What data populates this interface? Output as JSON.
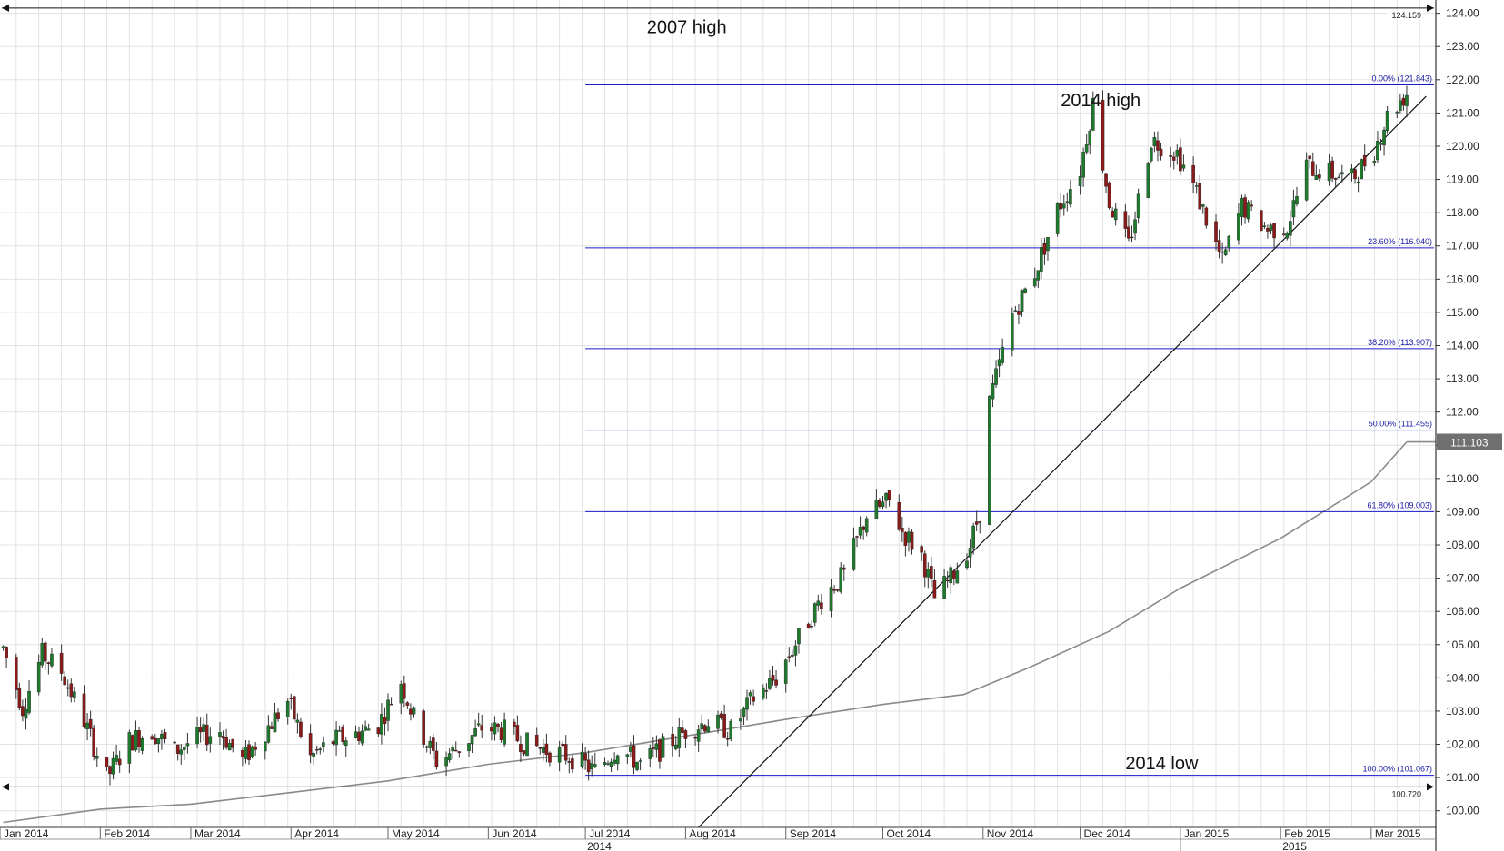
{
  "chart_data": {
    "type": "candlestick",
    "title": "",
    "xlabel": "",
    "ylabel": "",
    "ylim": [
      99.5,
      124.4
    ],
    "y_ticks": [
      "100.00",
      "101.00",
      "102.00",
      "103.00",
      "104.00",
      "105.00",
      "106.00",
      "107.00",
      "108.00",
      "109.00",
      "110.00",
      "111.00",
      "112.00",
      "113.00",
      "114.00",
      "115.00",
      "116.00",
      "117.00",
      "118.00",
      "119.00",
      "120.00",
      "121.00",
      "122.00",
      "123.00",
      "124.00"
    ],
    "x_month_labels": [
      "Jan 2014",
      "Feb 2014",
      "Mar 2014",
      "Apr 2014",
      "May 2014",
      "Jun 2014",
      "Jul 2014",
      "Aug 2014",
      "Sep 2014",
      "Oct 2014",
      "Nov 2014",
      "Dec 2014",
      "Jan 2015",
      "Feb 2015",
      "Mar 2015"
    ],
    "x_year_labels": [
      "2014",
      "2015"
    ],
    "grid": true,
    "colors": {
      "up": "#1f7a2e",
      "down": "#8b1a1a",
      "fib": "#1a1acd",
      "ma": "#8a8a8a",
      "trend": "#111111",
      "ref": "#111111"
    },
    "fib_levels": [
      {
        "label": "0.00% (121.843)",
        "value": 121.843
      },
      {
        "label": "23.60% (116.940)",
        "value": 116.94
      },
      {
        "label": "38.20% (113.907)",
        "value": 113.907
      },
      {
        "label": "50.00% (111.455)",
        "value": 111.455
      },
      {
        "label": "61.80% (109.003)",
        "value": 109.003
      },
      {
        "label": "100.00% (101.067)",
        "value": 101.067
      }
    ],
    "reference_lines": [
      {
        "label": "124.159",
        "value": 124.159
      },
      {
        "label": "100.720",
        "value": 100.72
      }
    ],
    "last_value": "111.103",
    "annotations": [
      {
        "text": "2007 high"
      },
      {
        "text": "2014 high"
      },
      {
        "text": "2014 low"
      }
    ],
    "trendline": [
      {
        "x": "2014-08-05",
        "y": 99.5
      },
      {
        "x": "2015-03-18",
        "y": 121.5
      }
    ],
    "moving_average": {
      "name": "",
      "points": [
        {
          "x": "2014-01-02",
          "y": 99.65
        },
        {
          "x": "2014-02-01",
          "y": 100.05
        },
        {
          "x": "2014-03-01",
          "y": 100.2
        },
        {
          "x": "2014-04-01",
          "y": 100.55
        },
        {
          "x": "2014-05-01",
          "y": 100.9
        },
        {
          "x": "2014-06-01",
          "y": 101.4
        },
        {
          "x": "2014-07-01",
          "y": 101.75
        },
        {
          "x": "2014-08-01",
          "y": 102.25
        },
        {
          "x": "2014-09-01",
          "y": 102.75
        },
        {
          "x": "2014-10-01",
          "y": 103.2
        },
        {
          "x": "2014-10-26",
          "y": 103.5
        },
        {
          "x": "2014-11-15",
          "y": 104.3
        },
        {
          "x": "2014-12-10",
          "y": 105.4
        },
        {
          "x": "2015-01-01",
          "y": 106.7
        },
        {
          "x": "2015-02-01",
          "y": 108.2
        },
        {
          "x": "2015-03-01",
          "y": 109.9
        },
        {
          "x": "2015-03-12",
          "y": 111.1
        }
      ]
    },
    "price_path": [
      [
        "2014-01-02",
        104.9
      ],
      [
        "2014-01-08",
        103.1
      ],
      [
        "2014-01-14",
        104.7
      ],
      [
        "2014-01-20",
        104.2
      ],
      [
        "2014-01-27",
        102.7
      ],
      [
        "2014-02-03",
        101.0
      ],
      [
        "2014-02-10",
        102.1
      ],
      [
        "2014-02-17",
        102.4
      ],
      [
        "2014-02-24",
        101.8
      ],
      [
        "2014-03-03",
        102.2
      ],
      [
        "2014-03-10",
        102.4
      ],
      [
        "2014-03-17",
        101.5
      ],
      [
        "2014-03-24",
        102.4
      ],
      [
        "2014-03-31",
        103.3
      ],
      [
        "2014-04-07",
        101.6
      ],
      [
        "2014-04-14",
        102.1
      ],
      [
        "2014-04-21",
        102.3
      ],
      [
        "2014-04-28",
        102.6
      ],
      [
        "2014-05-05",
        103.9
      ],
      [
        "2014-05-09",
        102.8
      ],
      [
        "2014-05-16",
        101.5
      ],
      [
        "2014-05-23",
        101.9
      ],
      [
        "2014-05-30",
        102.5
      ],
      [
        "2014-06-06",
        102.4
      ],
      [
        "2014-06-13",
        102.0
      ],
      [
        "2014-06-20",
        101.8
      ],
      [
        "2014-06-27",
        101.6
      ],
      [
        "2014-07-04",
        101.2
      ],
      [
        "2014-07-11",
        101.9
      ],
      [
        "2014-07-18",
        101.4
      ],
      [
        "2014-07-25",
        101.9
      ],
      [
        "2014-08-01",
        102.4
      ],
      [
        "2014-08-08",
        102.7
      ],
      [
        "2014-08-15",
        102.4
      ],
      [
        "2014-08-22",
        103.4
      ],
      [
        "2014-08-29",
        104.0
      ],
      [
        "2014-09-05",
        105.2
      ],
      [
        "2014-09-12",
        106.4
      ],
      [
        "2014-09-19",
        107.1
      ],
      [
        "2014-09-26",
        108.9
      ],
      [
        "2014-10-03",
        109.3
      ],
      [
        "2014-10-07",
        108.4
      ],
      [
        "2014-10-13",
        107.7
      ],
      [
        "2014-10-17",
        106.4
      ],
      [
        "2014-10-22",
        107.0
      ],
      [
        "2014-10-28",
        108.0
      ],
      [
        "2014-10-31",
        109.0
      ],
      [
        "2014-11-03",
        112.3
      ],
      [
        "2014-11-10",
        114.9
      ],
      [
        "2014-11-17",
        116.2
      ],
      [
        "2014-11-24",
        118.1
      ],
      [
        "2014-12-01",
        119.3
      ],
      [
        "2014-12-05",
        121.3
      ],
      [
        "2014-12-10",
        118.3
      ],
      [
        "2014-12-16",
        117.0
      ],
      [
        "2014-12-23",
        120.2
      ],
      [
        "2014-12-31",
        119.8
      ],
      [
        "2015-01-06",
        118.6
      ],
      [
        "2015-01-14",
        116.5
      ],
      [
        "2015-01-20",
        118.2
      ],
      [
        "2015-01-28",
        117.5
      ],
      [
        "2015-02-03",
        117.6
      ],
      [
        "2015-02-09",
        119.4
      ],
      [
        "2015-02-16",
        119.2
      ],
      [
        "2015-02-23",
        119.0
      ],
      [
        "2015-03-02",
        119.9
      ],
      [
        "2015-03-06",
        120.9
      ],
      [
        "2015-03-12",
        121.6
      ]
    ]
  }
}
